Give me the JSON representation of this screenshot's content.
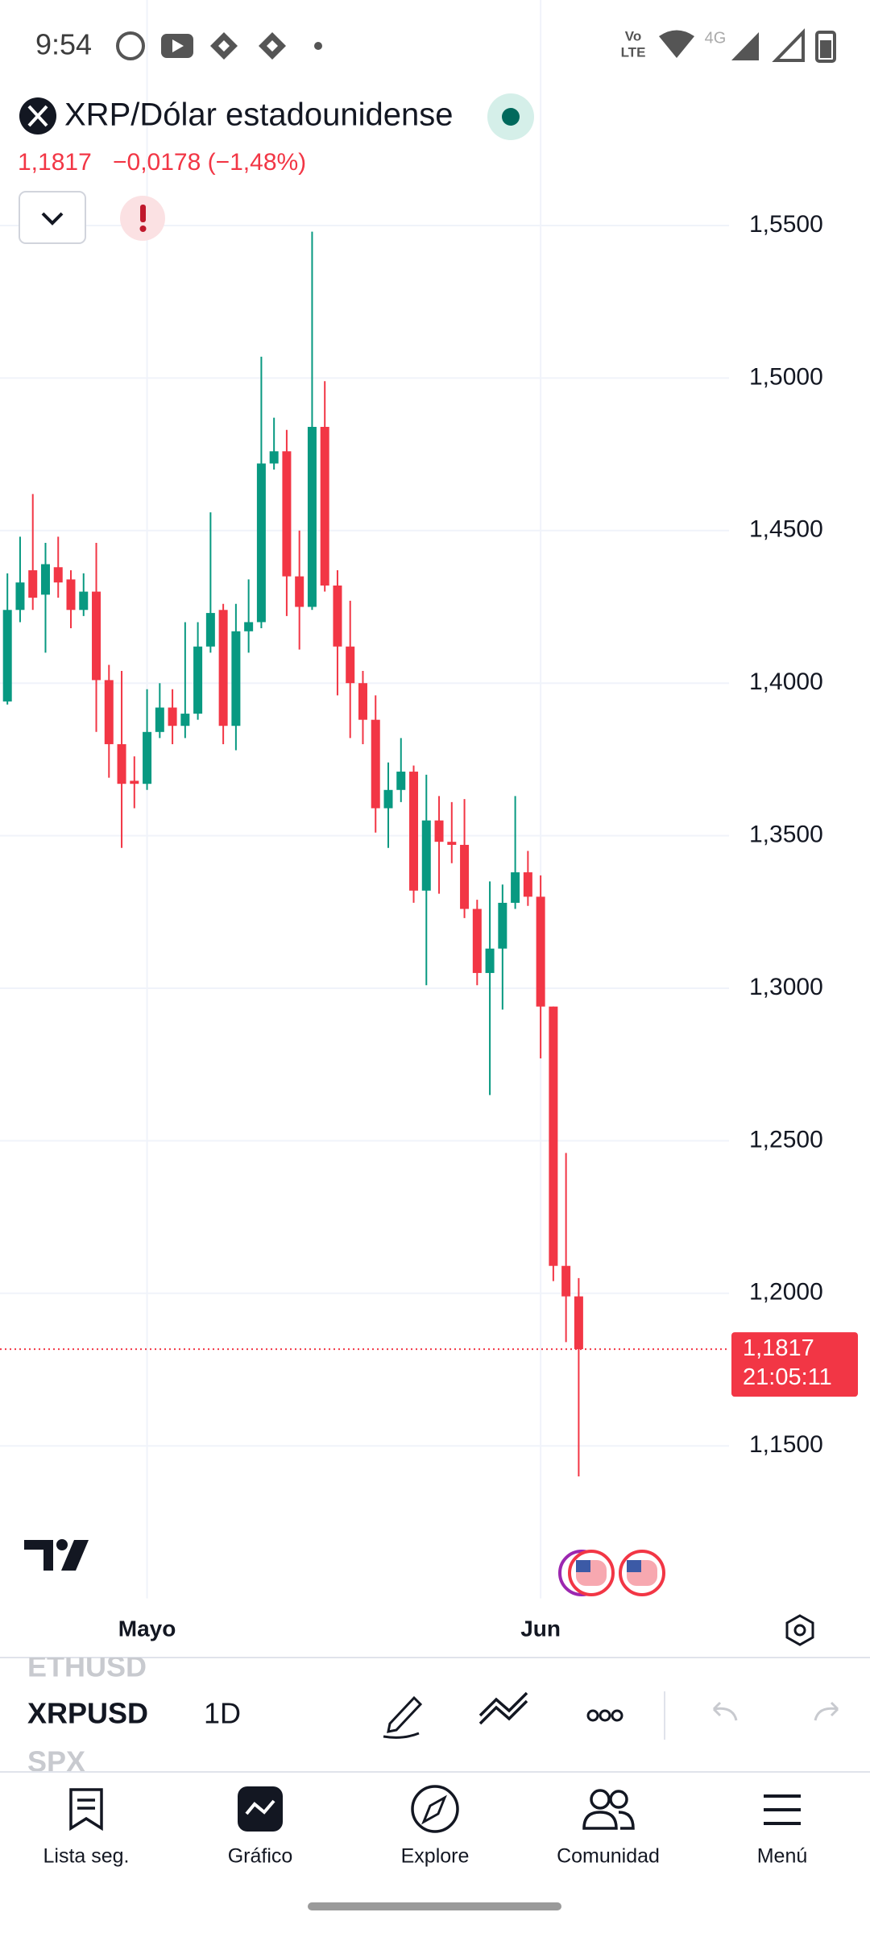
{
  "status_bar": {
    "time": "9:54",
    "volte_top": "Vo",
    "volte_bottom": "LTE",
    "network": "4G"
  },
  "header": {
    "title": "XRP/Dólar estadounidense",
    "change": "−0,0178 (−1,48%)"
  },
  "chart_data": {
    "type": "candlestick",
    "categories": [
      null,
      null,
      null,
      null,
      null,
      null,
      null,
      null,
      null,
      null,
      null,
      "Mayo",
      null,
      null,
      null,
      null,
      null,
      null,
      null,
      null,
      null,
      null,
      null,
      null,
      null,
      null,
      null,
      null,
      null,
      null,
      null,
      null,
      null,
      null,
      null,
      null,
      null,
      null,
      null,
      null,
      null,
      null,
      "Jun",
      null,
      null,
      null
    ],
    "open": [
      1.394,
      1.424,
      1.437,
      1.429,
      1.438,
      1.434,
      1.424,
      1.43,
      1.401,
      1.38,
      1.368,
      1.367,
      1.384,
      1.392,
      1.386,
      1.39,
      1.412,
      1.424,
      1.386,
      1.417,
      1.42,
      1.472,
      1.476,
      1.435,
      1.425,
      1.484,
      1.432,
      1.412,
      1.4,
      1.388,
      1.359,
      1.365,
      1.371,
      1.332,
      1.355,
      1.348,
      1.347,
      1.326,
      1.305,
      1.313,
      1.328,
      1.338,
      1.33,
      1.294,
      1.209,
      1.199
    ],
    "high": [
      1.436,
      1.448,
      1.462,
      1.446,
      1.448,
      1.437,
      1.436,
      1.446,
      1.406,
      1.404,
      1.376,
      1.398,
      1.4,
      1.398,
      1.42,
      1.42,
      1.456,
      1.426,
      1.426,
      1.434,
      1.507,
      1.487,
      1.483,
      1.45,
      1.548,
      1.499,
      1.437,
      1.427,
      1.404,
      1.396,
      1.374,
      1.382,
      1.373,
      1.37,
      1.363,
      1.361,
      1.362,
      1.329,
      1.335,
      1.334,
      1.363,
      1.345,
      1.337,
      1.294,
      1.246,
      1.205
    ],
    "low": [
      1.393,
      1.42,
      1.424,
      1.41,
      1.428,
      1.418,
      1.422,
      1.384,
      1.369,
      1.346,
      1.359,
      1.365,
      1.382,
      1.38,
      1.382,
      1.388,
      1.41,
      1.38,
      1.378,
      1.41,
      1.418,
      1.47,
      1.422,
      1.411,
      1.424,
      1.43,
      1.396,
      1.382,
      1.38,
      1.351,
      1.346,
      1.361,
      1.328,
      1.301,
      1.331,
      1.341,
      1.323,
      1.301,
      1.265,
      1.293,
      1.326,
      1.327,
      1.277,
      1.204,
      1.184,
      1.14
    ],
    "close": [
      1.424,
      1.433,
      1.428,
      1.439,
      1.433,
      1.424,
      1.43,
      1.401,
      1.38,
      1.367,
      1.367,
      1.384,
      1.392,
      1.386,
      1.39,
      1.412,
      1.423,
      1.386,
      1.417,
      1.42,
      1.472,
      1.476,
      1.435,
      1.425,
      1.484,
      1.432,
      1.412,
      1.4,
      1.388,
      1.359,
      1.365,
      1.371,
      1.332,
      1.355,
      1.348,
      1.347,
      1.326,
      1.305,
      1.313,
      1.328,
      1.338,
      1.33,
      1.294,
      1.209,
      1.199,
      1.1817
    ],
    "up_color": "#089981",
    "down_color": "#f23645",
    "ylim": [
      1.1,
      1.6
    ],
    "yticks": [
      {
        "value": 1.15,
        "label": "1,1500"
      },
      {
        "value": 1.2,
        "label": "1,2000"
      },
      {
        "value": 1.25,
        "label": "1,2500"
      },
      {
        "value": 1.3,
        "label": "1,3000"
      },
      {
        "value": 1.35,
        "label": "1,3500"
      },
      {
        "value": 1.4,
        "label": "1,4000"
      },
      {
        "value": 1.45,
        "label": "1,4500"
      },
      {
        "value": 1.5,
        "label": "1,5000"
      },
      {
        "value": 1.55,
        "label": "1,5500"
      }
    ],
    "grid": true,
    "last_price": {
      "value": 1.1817,
      "label": "1,1817"
    },
    "countdown": "21:05:11"
  },
  "toolbar": {
    "previous_symbol": "ETHUSD",
    "symbol": "XRPUSD",
    "interval": "1D",
    "next_symbol": "SPX"
  },
  "nav": [
    "Lista seg.",
    "Gráfico",
    "Explore",
    "Comunidad",
    "Menú"
  ]
}
